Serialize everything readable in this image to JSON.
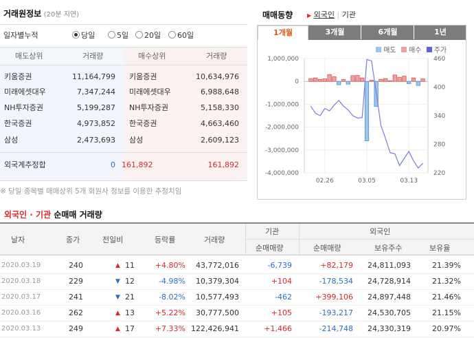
{
  "left": {
    "title": "거래원정보",
    "delay": "(20분 지연)",
    "period_label": "일자별누적",
    "periods": [
      "당일",
      "5일",
      "20일",
      "60일"
    ],
    "selected_period": "당일",
    "columns": [
      "매도상위",
      "거래량",
      "매수상위",
      "거래량"
    ],
    "rows": [
      {
        "sell_broker": "키움증권",
        "sell_vol": "11,164,799",
        "buy_broker": "키움증권",
        "buy_vol": "10,634,976"
      },
      {
        "sell_broker": "미래에셋대우",
        "sell_vol": "7,347,244",
        "buy_broker": "미래에셋대우",
        "buy_vol": "6,988,648"
      },
      {
        "sell_broker": "NH투자증권",
        "sell_vol": "5,199,287",
        "buy_broker": "NH투자증권",
        "buy_vol": "5,158,330"
      },
      {
        "sell_broker": "한국증권",
        "sell_vol": "4,973,852",
        "buy_broker": "한국증권",
        "buy_vol": "4,663,460"
      },
      {
        "sell_broker": "삼성",
        "sell_vol": "2,473,693",
        "buy_broker": "삼성",
        "buy_vol": "2,609,123"
      }
    ],
    "foreign_label": "외국계추정합",
    "foreign_sell": "0",
    "foreign_net": "161,892",
    "foreign_buy": "161,892",
    "note": "※ 당일 종목별 매매상위 5개 회원사 정보를 이용한 추정치임"
  },
  "right": {
    "title": "매매동향",
    "links": [
      "외국인",
      "기관"
    ],
    "tabs": [
      "1개월",
      "3개월",
      "6개월",
      "1년"
    ],
    "active_tab": "1개월",
    "legend": [
      "매도",
      "매수",
      "주가"
    ],
    "colors": {
      "sell": "#5b9bd5",
      "buy": "#e06060",
      "price": "#7b7be0"
    }
  },
  "chart_data": {
    "type": "bar",
    "y_left_ticks": [
      "1,000,000",
      "0",
      "-1,000,000",
      "-2,000,000",
      "-3,000,000",
      "-4,000,000"
    ],
    "y_left_range": [
      -4000000,
      1000000
    ],
    "y_right_ticks": [
      "460",
      "400",
      "340",
      "280",
      "220"
    ],
    "y_right_range": [
      220,
      460
    ],
    "x_tick_labels": [
      "02.26",
      "03.05",
      "03.13"
    ],
    "net_values": [
      120000,
      150000,
      90000,
      110000,
      300000,
      200000,
      -150000,
      80000,
      -120000,
      250000,
      260000,
      150000,
      -2600000,
      50000,
      -1100000,
      90000,
      120000,
      30000,
      280000,
      180000,
      230000,
      -100000,
      150000,
      -180000,
      110000
    ],
    "price": [
      360,
      345,
      340,
      355,
      350,
      362,
      372,
      360,
      352,
      340,
      335,
      336,
      458,
      455,
      390,
      320,
      292,
      262,
      260,
      235,
      250,
      265,
      245,
      230,
      240
    ],
    "bar_colors": [
      "buy",
      "buy",
      "buy",
      "buy",
      "buy",
      "buy",
      "sell",
      "buy",
      "sell",
      "buy",
      "buy",
      "buy",
      "sell",
      "buy",
      "sell",
      "buy",
      "buy",
      "buy",
      "buy",
      "buy",
      "buy",
      "sell",
      "buy",
      "sell",
      "buy"
    ]
  },
  "bottom": {
    "title_a": "외국인 · 기관",
    "title_b": "순매매 거래량",
    "group_inst": "기관",
    "group_foreign": "외국인",
    "columns": [
      "날자",
      "종가",
      "전일비",
      "등락률",
      "거래량",
      "순매매량",
      "순매매량",
      "보유주수",
      "보유율"
    ],
    "rows": [
      {
        "date": "2020.03.19",
        "close": "240",
        "dir": "up",
        "diff": "11",
        "rate": "+4.80%",
        "vol": "43,772,016",
        "inst": "-6,739",
        "foreign": "+82,179",
        "hold": "24,811,093",
        "ratio": "21.39%"
      },
      {
        "date": "2020.03.18",
        "close": "229",
        "dir": "down",
        "diff": "12",
        "rate": "-4.98%",
        "vol": "10,379,304",
        "inst": "+104",
        "foreign": "-178,534",
        "hold": "24,728,914",
        "ratio": "21.32%"
      },
      {
        "date": "2020.03.17",
        "close": "241",
        "dir": "down",
        "diff": "21",
        "rate": "-8.02%",
        "vol": "10,577,493",
        "inst": "-462",
        "foreign": "+399,106",
        "hold": "24,897,448",
        "ratio": "21.46%"
      },
      {
        "date": "2020.03.16",
        "close": "262",
        "dir": "up",
        "diff": "13",
        "rate": "+5.22%",
        "vol": "30,777,500",
        "inst": "+105",
        "foreign": "-193,217",
        "hold": "24,530,705",
        "ratio": "21.15%"
      },
      {
        "date": "2020.03.13",
        "close": "249",
        "dir": "up",
        "diff": "17",
        "rate": "+7.33%",
        "vol": "122,426,941",
        "inst": "+1,466",
        "foreign": "-214,748",
        "hold": "24,330,319",
        "ratio": "20.97%"
      }
    ]
  }
}
